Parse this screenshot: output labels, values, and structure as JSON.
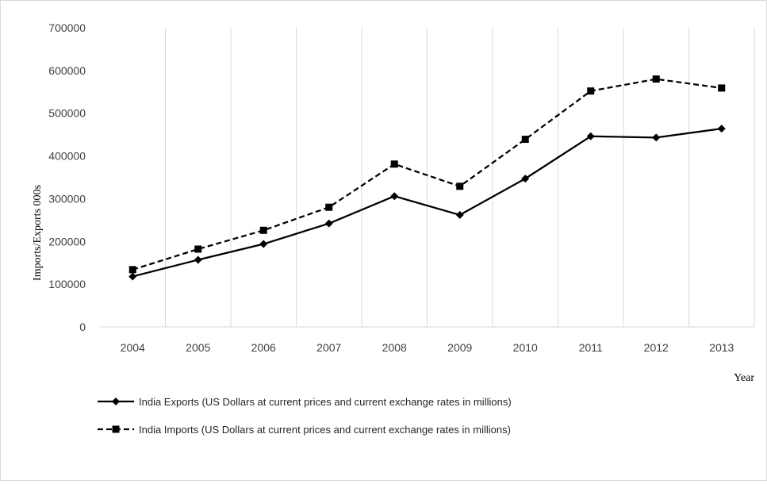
{
  "chart_data": {
    "type": "line",
    "title": "",
    "xlabel": "Year",
    "ylabel": "Imports/Exports 000s",
    "categories": [
      "2004",
      "2005",
      "2006",
      "2007",
      "2008",
      "2009",
      "2010",
      "2011",
      "2012",
      "2013"
    ],
    "ylim": [
      0,
      700000
    ],
    "yticks": [
      "0",
      "100000",
      "200000",
      "300000",
      "400000",
      "500000",
      "600000",
      "700000"
    ],
    "grid": "vertical",
    "legend_position": "bottom-left",
    "series": [
      {
        "name": "India Exports (US Dollars at current prices and current exchange rates in millions)",
        "values": [
          118000,
          157000,
          194000,
          242000,
          306000,
          262000,
          347000,
          446000,
          443000,
          464000
        ],
        "marker": "diamond",
        "line": "solid",
        "color": "#000000"
      },
      {
        "name": "India Imports (US Dollars at current prices and current exchange rates in millions)",
        "values": [
          134000,
          182000,
          226000,
          280000,
          381000,
          329000,
          439000,
          552000,
          580000,
          559000
        ],
        "marker": "square",
        "line": "dashed",
        "color": "#000000"
      }
    ]
  }
}
